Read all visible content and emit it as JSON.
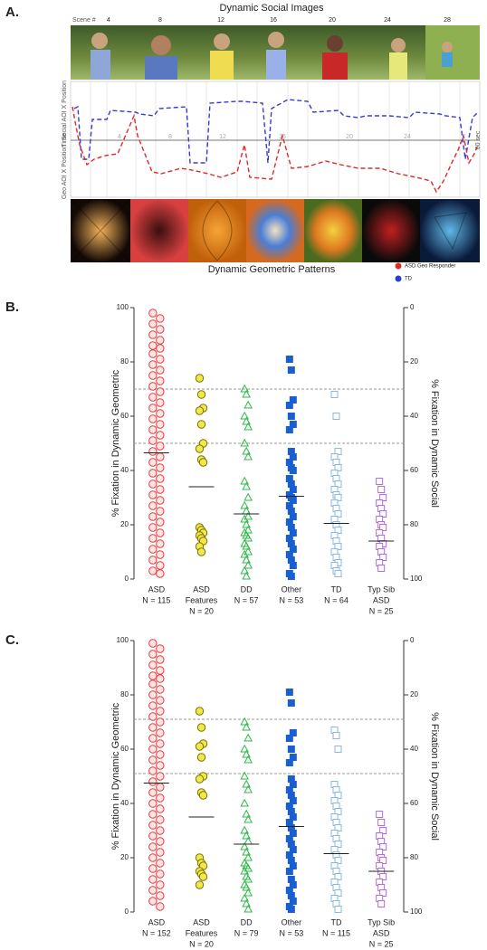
{
  "panel_a": {
    "panel_label": "A.",
    "title": "Dynamic Social Images",
    "scene_label": "Scene #",
    "scenes": [
      "4",
      "8",
      "12",
      "16",
      "20",
      "24",
      "28"
    ],
    "inner_scenes": [
      "4",
      "8",
      "12",
      "16",
      "20",
      "24"
    ],
    "social_axis": "Social AOI X Position",
    "time_axis": "Time",
    "geo_axis": "Geo AOI X Position",
    "duration": "60 sec",
    "bottom_title": "Dynamic Geometric Patterns",
    "legend": [
      {
        "name": "ASD Geo Responder",
        "color": "#e02828"
      },
      {
        "name": "TD",
        "color": "#2a3fd0"
      }
    ]
  },
  "chart_data": [
    {
      "panel_label": "B.",
      "type": "strip",
      "ylabel": "% Fixation in Dynamic Geometric",
      "y2label": "% Fixation in Dynamic Social",
      "ylim": [
        0,
        100
      ],
      "yticks": [
        0,
        20,
        40,
        60,
        80,
        100
      ],
      "y2lim": [
        100,
        0
      ],
      "y2ticks": [
        0,
        20,
        40,
        60,
        80,
        100
      ],
      "reference_lines": [
        70,
        50
      ],
      "categories": [
        [
          "ASD",
          "N = 115"
        ],
        [
          "ASD",
          "Features",
          "N = 20"
        ],
        [
          "DD",
          "N = 57"
        ],
        [
          "Other",
          "N = 53"
        ],
        [
          "TD",
          "N = 64"
        ],
        [
          "Typ Sib",
          "ASD",
          "N = 25"
        ]
      ],
      "series": [
        {
          "marker": "circle",
          "color": "#e8383d",
          "fill": "#ffe4e4",
          "median": 46.5,
          "values": [
            98,
            96,
            94,
            92,
            90,
            88,
            86,
            85,
            83,
            81,
            79,
            77,
            75,
            73,
            71,
            69,
            67,
            65,
            63,
            61,
            59,
            57,
            55,
            53,
            51,
            49,
            47,
            45,
            43,
            41,
            39,
            37,
            35,
            33,
            31,
            29,
            27,
            25,
            23,
            21,
            19,
            17,
            15,
            13,
            11,
            9,
            7,
            5,
            3,
            2
          ]
        },
        {
          "marker": "circle",
          "color": "#7a7200",
          "fill": "#f2e84a",
          "median": 34,
          "values": [
            74,
            68,
            63,
            62,
            57,
            50,
            48,
            44,
            43,
            19,
            18,
            17,
            16,
            15,
            14,
            12,
            10
          ]
        },
        {
          "marker": "triangle",
          "color": "#2eb84a",
          "fill": "none",
          "median": 24,
          "values": [
            70,
            68,
            64,
            60,
            58,
            56,
            50,
            47,
            45,
            36,
            34,
            30,
            27,
            25,
            23,
            22,
            20,
            18,
            17,
            16,
            15,
            13,
            12,
            10,
            9,
            7,
            5,
            3,
            1
          ]
        },
        {
          "marker": "square",
          "color": "#1a5fd0",
          "fill": "#1a5fd0",
          "median": 30.5,
          "values": [
            81,
            77,
            66,
            64,
            60,
            57,
            55,
            47,
            45,
            43,
            41,
            40,
            37,
            35,
            33,
            31,
            30,
            29,
            27,
            25,
            23,
            21,
            19,
            17,
            15,
            13,
            11,
            9,
            7,
            5,
            2,
            1
          ]
        },
        {
          "marker": "square",
          "color": "#8ab8e6",
          "fill": "#ffffff",
          "median": 20.5,
          "values": [
            68,
            60,
            47,
            45,
            43,
            41,
            39,
            37,
            35,
            33,
            31,
            30,
            28,
            26,
            24,
            22,
            20,
            18,
            16,
            14,
            12,
            10,
            8,
            6,
            5,
            3,
            2
          ]
        },
        {
          "marker": "square",
          "color": "#b36ae0",
          "fill": "#ffffff",
          "median": 14,
          "values": [
            36,
            33,
            30,
            28,
            26,
            24,
            22,
            20,
            19,
            17,
            15,
            13,
            12,
            10,
            8,
            6,
            4
          ]
        }
      ]
    },
    {
      "panel_label": "C.",
      "type": "strip",
      "ylabel": "% Fixation in Dynamic Geometric",
      "y2label": "% Fixation in Dynamic Social",
      "ylim": [
        0,
        100
      ],
      "yticks": [
        0,
        20,
        40,
        60,
        80,
        100
      ],
      "y2lim": [
        100,
        0
      ],
      "y2ticks": [
        0,
        20,
        40,
        60,
        80,
        100
      ],
      "reference_lines": [
        71,
        51
      ],
      "categories": [
        [
          "ASD",
          "N = 152"
        ],
        [
          "ASD",
          "Features",
          "N = 20"
        ],
        [
          "DD",
          "N = 79"
        ],
        [
          "Other",
          "N = 53"
        ],
        [
          "TD",
          "N = 115"
        ],
        [
          "Typ Sib",
          "ASD",
          "N = 25"
        ]
      ],
      "series": [
        {
          "marker": "circle",
          "color": "#e8383d",
          "fill": "#ffe4e4",
          "median": 47.5,
          "values": [
            99,
            97,
            95,
            93,
            91,
            89,
            87,
            86,
            84,
            82,
            80,
            78,
            76,
            74,
            72,
            70,
            68,
            66,
            64,
            62,
            60,
            58,
            56,
            54,
            52,
            50,
            48,
            46,
            44,
            42,
            40,
            38,
            36,
            34,
            32,
            30,
            28,
            26,
            24,
            22,
            20,
            18,
            16,
            14,
            12,
            10,
            8,
            6,
            4,
            2
          ]
        },
        {
          "marker": "circle",
          "color": "#7a7200",
          "fill": "#f2e84a",
          "median": 35,
          "values": [
            74,
            68,
            62,
            61,
            57,
            50,
            49,
            44,
            43,
            20,
            18,
            17,
            15,
            14,
            13,
            10
          ]
        },
        {
          "marker": "triangle",
          "color": "#2eb84a",
          "fill": "none",
          "median": 25,
          "values": [
            70,
            68,
            64,
            60,
            58,
            56,
            50,
            47,
            45,
            40,
            36,
            34,
            30,
            28,
            26,
            24,
            22,
            20,
            18,
            17,
            16,
            15,
            13,
            12,
            10,
            9,
            7,
            5,
            3,
            1
          ]
        },
        {
          "marker": "square",
          "color": "#1a5fd0",
          "fill": "#1a5fd0",
          "median": 31.5,
          "values": [
            81,
            77,
            66,
            64,
            60,
            57,
            55,
            49,
            47,
            45,
            43,
            41,
            39,
            37,
            35,
            33,
            31,
            29,
            27,
            25,
            23,
            21,
            19,
            17,
            15,
            12,
            10,
            8,
            6,
            4,
            2,
            1
          ]
        },
        {
          "marker": "square",
          "color": "#8ab8e6",
          "fill": "#ffffff",
          "median": 21.5,
          "values": [
            67,
            65,
            60,
            47,
            45,
            43,
            41,
            39,
            37,
            35,
            33,
            31,
            29,
            27,
            25,
            23,
            21,
            19,
            17,
            15,
            13,
            11,
            9,
            7,
            5,
            3,
            1
          ]
        },
        {
          "marker": "square",
          "color": "#b36ae0",
          "fill": "#ffffff",
          "median": 15,
          "values": [
            36,
            33,
            30,
            28,
            26,
            24,
            22,
            20,
            19,
            17,
            15,
            13,
            11,
            9,
            7,
            5,
            3
          ]
        }
      ]
    }
  ]
}
